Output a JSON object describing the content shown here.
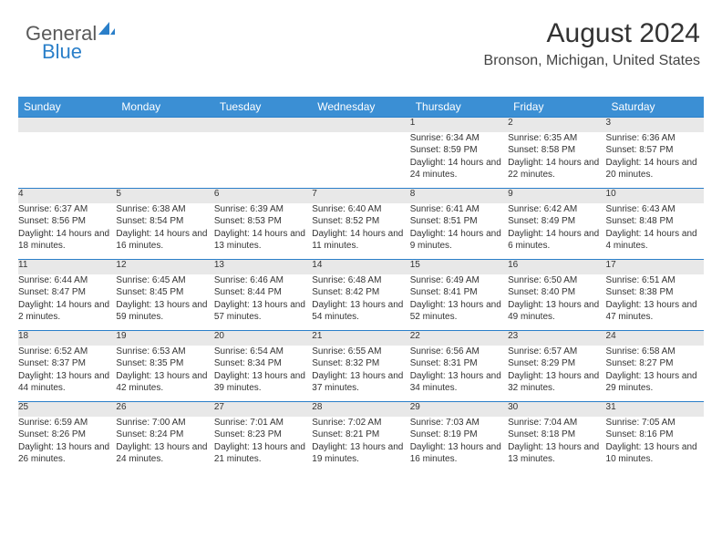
{
  "logo": {
    "part1": "General",
    "part2": "Blue"
  },
  "header": {
    "monthYear": "August 2024",
    "location": "Bronson, Michigan, United States"
  },
  "colors": {
    "headerBg": "#3b8fd4",
    "headerText": "#ffffff",
    "dayNumBg": "#e8e8e8",
    "rowBorder": "#2a7fc9",
    "logoGray": "#5a5a5a",
    "logoBlue": "#2a7fc9",
    "bodyText": "#333333"
  },
  "calendar": {
    "dayNames": [
      "Sunday",
      "Monday",
      "Tuesday",
      "Wednesday",
      "Thursday",
      "Friday",
      "Saturday"
    ],
    "startOffset": 4,
    "days": [
      {
        "n": 1,
        "sunrise": "6:34 AM",
        "sunset": "8:59 PM",
        "daylight": "14 hours and 24 minutes."
      },
      {
        "n": 2,
        "sunrise": "6:35 AM",
        "sunset": "8:58 PM",
        "daylight": "14 hours and 22 minutes."
      },
      {
        "n": 3,
        "sunrise": "6:36 AM",
        "sunset": "8:57 PM",
        "daylight": "14 hours and 20 minutes."
      },
      {
        "n": 4,
        "sunrise": "6:37 AM",
        "sunset": "8:56 PM",
        "daylight": "14 hours and 18 minutes."
      },
      {
        "n": 5,
        "sunrise": "6:38 AM",
        "sunset": "8:54 PM",
        "daylight": "14 hours and 16 minutes."
      },
      {
        "n": 6,
        "sunrise": "6:39 AM",
        "sunset": "8:53 PM",
        "daylight": "14 hours and 13 minutes."
      },
      {
        "n": 7,
        "sunrise": "6:40 AM",
        "sunset": "8:52 PM",
        "daylight": "14 hours and 11 minutes."
      },
      {
        "n": 8,
        "sunrise": "6:41 AM",
        "sunset": "8:51 PM",
        "daylight": "14 hours and 9 minutes."
      },
      {
        "n": 9,
        "sunrise": "6:42 AM",
        "sunset": "8:49 PM",
        "daylight": "14 hours and 6 minutes."
      },
      {
        "n": 10,
        "sunrise": "6:43 AM",
        "sunset": "8:48 PM",
        "daylight": "14 hours and 4 minutes."
      },
      {
        "n": 11,
        "sunrise": "6:44 AM",
        "sunset": "8:47 PM",
        "daylight": "14 hours and 2 minutes."
      },
      {
        "n": 12,
        "sunrise": "6:45 AM",
        "sunset": "8:45 PM",
        "daylight": "13 hours and 59 minutes."
      },
      {
        "n": 13,
        "sunrise": "6:46 AM",
        "sunset": "8:44 PM",
        "daylight": "13 hours and 57 minutes."
      },
      {
        "n": 14,
        "sunrise": "6:48 AM",
        "sunset": "8:42 PM",
        "daylight": "13 hours and 54 minutes."
      },
      {
        "n": 15,
        "sunrise": "6:49 AM",
        "sunset": "8:41 PM",
        "daylight": "13 hours and 52 minutes."
      },
      {
        "n": 16,
        "sunrise": "6:50 AM",
        "sunset": "8:40 PM",
        "daylight": "13 hours and 49 minutes."
      },
      {
        "n": 17,
        "sunrise": "6:51 AM",
        "sunset": "8:38 PM",
        "daylight": "13 hours and 47 minutes."
      },
      {
        "n": 18,
        "sunrise": "6:52 AM",
        "sunset": "8:37 PM",
        "daylight": "13 hours and 44 minutes."
      },
      {
        "n": 19,
        "sunrise": "6:53 AM",
        "sunset": "8:35 PM",
        "daylight": "13 hours and 42 minutes."
      },
      {
        "n": 20,
        "sunrise": "6:54 AM",
        "sunset": "8:34 PM",
        "daylight": "13 hours and 39 minutes."
      },
      {
        "n": 21,
        "sunrise": "6:55 AM",
        "sunset": "8:32 PM",
        "daylight": "13 hours and 37 minutes."
      },
      {
        "n": 22,
        "sunrise": "6:56 AM",
        "sunset": "8:31 PM",
        "daylight": "13 hours and 34 minutes."
      },
      {
        "n": 23,
        "sunrise": "6:57 AM",
        "sunset": "8:29 PM",
        "daylight": "13 hours and 32 minutes."
      },
      {
        "n": 24,
        "sunrise": "6:58 AM",
        "sunset": "8:27 PM",
        "daylight": "13 hours and 29 minutes."
      },
      {
        "n": 25,
        "sunrise": "6:59 AM",
        "sunset": "8:26 PM",
        "daylight": "13 hours and 26 minutes."
      },
      {
        "n": 26,
        "sunrise": "7:00 AM",
        "sunset": "8:24 PM",
        "daylight": "13 hours and 24 minutes."
      },
      {
        "n": 27,
        "sunrise": "7:01 AM",
        "sunset": "8:23 PM",
        "daylight": "13 hours and 21 minutes."
      },
      {
        "n": 28,
        "sunrise": "7:02 AM",
        "sunset": "8:21 PM",
        "daylight": "13 hours and 19 minutes."
      },
      {
        "n": 29,
        "sunrise": "7:03 AM",
        "sunset": "8:19 PM",
        "daylight": "13 hours and 16 minutes."
      },
      {
        "n": 30,
        "sunrise": "7:04 AM",
        "sunset": "8:18 PM",
        "daylight": "13 hours and 13 minutes."
      },
      {
        "n": 31,
        "sunrise": "7:05 AM",
        "sunset": "8:16 PM",
        "daylight": "13 hours and 10 minutes."
      }
    ]
  },
  "labels": {
    "sunrise": "Sunrise: ",
    "sunset": "Sunset: ",
    "daylight": "Daylight: "
  }
}
